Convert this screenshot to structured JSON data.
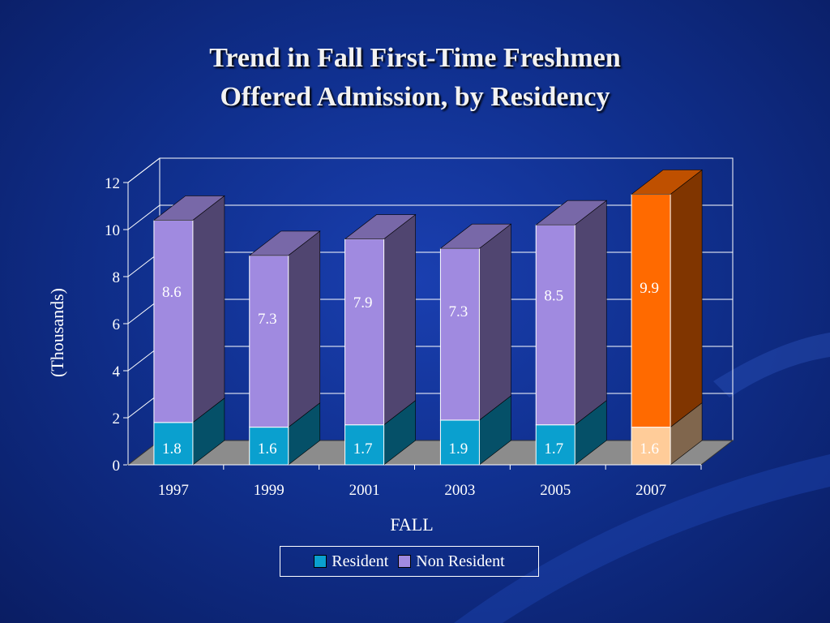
{
  "title_line1": "Trend in Fall First-Time Freshmen",
  "title_line2": "Offered Admission, by Residency",
  "chart_data": {
    "type": "bar",
    "stacked": true,
    "categories": [
      "1997",
      "1999",
      "2001",
      "2003",
      "2005",
      "2007"
    ],
    "series": [
      {
        "name": "Resident",
        "values": [
          1.8,
          1.6,
          1.7,
          1.9,
          1.7,
          1.6
        ],
        "color": "#0aa0cf"
      },
      {
        "name": "Non Resident",
        "values": [
          8.6,
          7.3,
          7.9,
          7.3,
          8.5,
          9.9
        ],
        "color": "#a08ae0"
      }
    ],
    "highlight": {
      "category": "2007",
      "resident_color": "#ffcc99",
      "nonresident_color": "#ff6a00"
    },
    "xlabel": "FALL",
    "ylabel": "(Thousands)",
    "ylim": [
      0,
      12
    ],
    "yticks": [
      "0",
      "2",
      "4",
      "6",
      "8",
      "10",
      "12"
    ],
    "grid": true,
    "legend_position": "bottom"
  }
}
